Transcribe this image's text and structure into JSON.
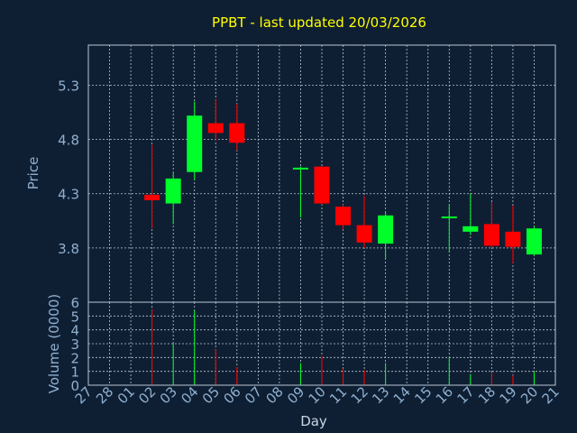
{
  "chart_data": {
    "type": "candlestick",
    "title": "PPBT - last updated 20/03/2026",
    "xlabel": "Day",
    "ylabel": "Price",
    "volume_label": "Volume (0000)",
    "x_ticks": [
      "27",
      "28",
      "01",
      "02",
      "03",
      "04",
      "05",
      "06",
      "07",
      "08",
      "09",
      "10",
      "11",
      "12",
      "13",
      "14",
      "15",
      "16",
      "17",
      "18",
      "19",
      "20",
      "21"
    ],
    "price_ticks": [
      "5.3",
      "4.8",
      "4.3",
      "3.8"
    ],
    "volume_ticks": [
      "6",
      "5",
      "4",
      "3",
      "2",
      "1",
      "0"
    ],
    "ylim": [
      3.3,
      5.67
    ],
    "volume_ylim": [
      0,
      6
    ],
    "grid": true,
    "colors": {
      "up": "#00ff2a",
      "down": "#ff0000",
      "background": "#0f1f33",
      "title": "#ffff00",
      "axis_text": "#8fb0d0"
    },
    "candles": [
      {
        "day": "02",
        "open": 4.29,
        "high": 4.75,
        "low": 3.98,
        "close": 4.24,
        "volume": 5.5
      },
      {
        "day": "03",
        "open": 4.21,
        "high": 4.49,
        "low": 4.02,
        "close": 4.44,
        "volume": 3.0
      },
      {
        "day": "04",
        "open": 4.5,
        "high": 5.15,
        "low": 4.43,
        "close": 5.02,
        "volume": 5.4
      },
      {
        "day": "05",
        "open": 4.95,
        "high": 5.17,
        "low": 4.79,
        "close": 4.86,
        "volume": 2.6
      },
      {
        "day": "06",
        "open": 4.95,
        "high": 5.13,
        "low": 4.7,
        "close": 4.77,
        "volume": 1.3
      },
      {
        "day": "09",
        "open": 4.53,
        "high": 4.55,
        "low": 4.08,
        "close": 4.54,
        "volume": 1.6
      },
      {
        "day": "10",
        "open": 4.55,
        "high": 4.55,
        "low": 4.2,
        "close": 4.21,
        "volume": 2.1
      },
      {
        "day": "11",
        "open": 4.18,
        "high": 4.2,
        "low": 3.97,
        "close": 4.01,
        "volume": 1.2
      },
      {
        "day": "12",
        "open": 4.01,
        "high": 4.28,
        "low": 3.8,
        "close": 3.85,
        "volume": 1.1
      },
      {
        "day": "13",
        "open": 3.84,
        "high": 4.13,
        "low": 3.7,
        "close": 4.1,
        "volume": 1.6
      },
      {
        "day": "16",
        "open": 4.08,
        "high": 4.2,
        "low": 3.76,
        "close": 4.09,
        "volume": 2.0
      },
      {
        "day": "17",
        "open": 3.95,
        "high": 4.3,
        "low": 3.92,
        "close": 4.0,
        "volume": 0.8
      },
      {
        "day": "18",
        "open": 4.02,
        "high": 4.22,
        "low": 3.8,
        "close": 3.82,
        "volume": 0.9
      },
      {
        "day": "19",
        "open": 3.95,
        "high": 4.19,
        "low": 3.66,
        "close": 3.81,
        "volume": 0.7
      },
      {
        "day": "20",
        "open": 3.74,
        "high": 4.0,
        "low": 3.73,
        "close": 3.98,
        "volume": 1.0
      }
    ]
  }
}
